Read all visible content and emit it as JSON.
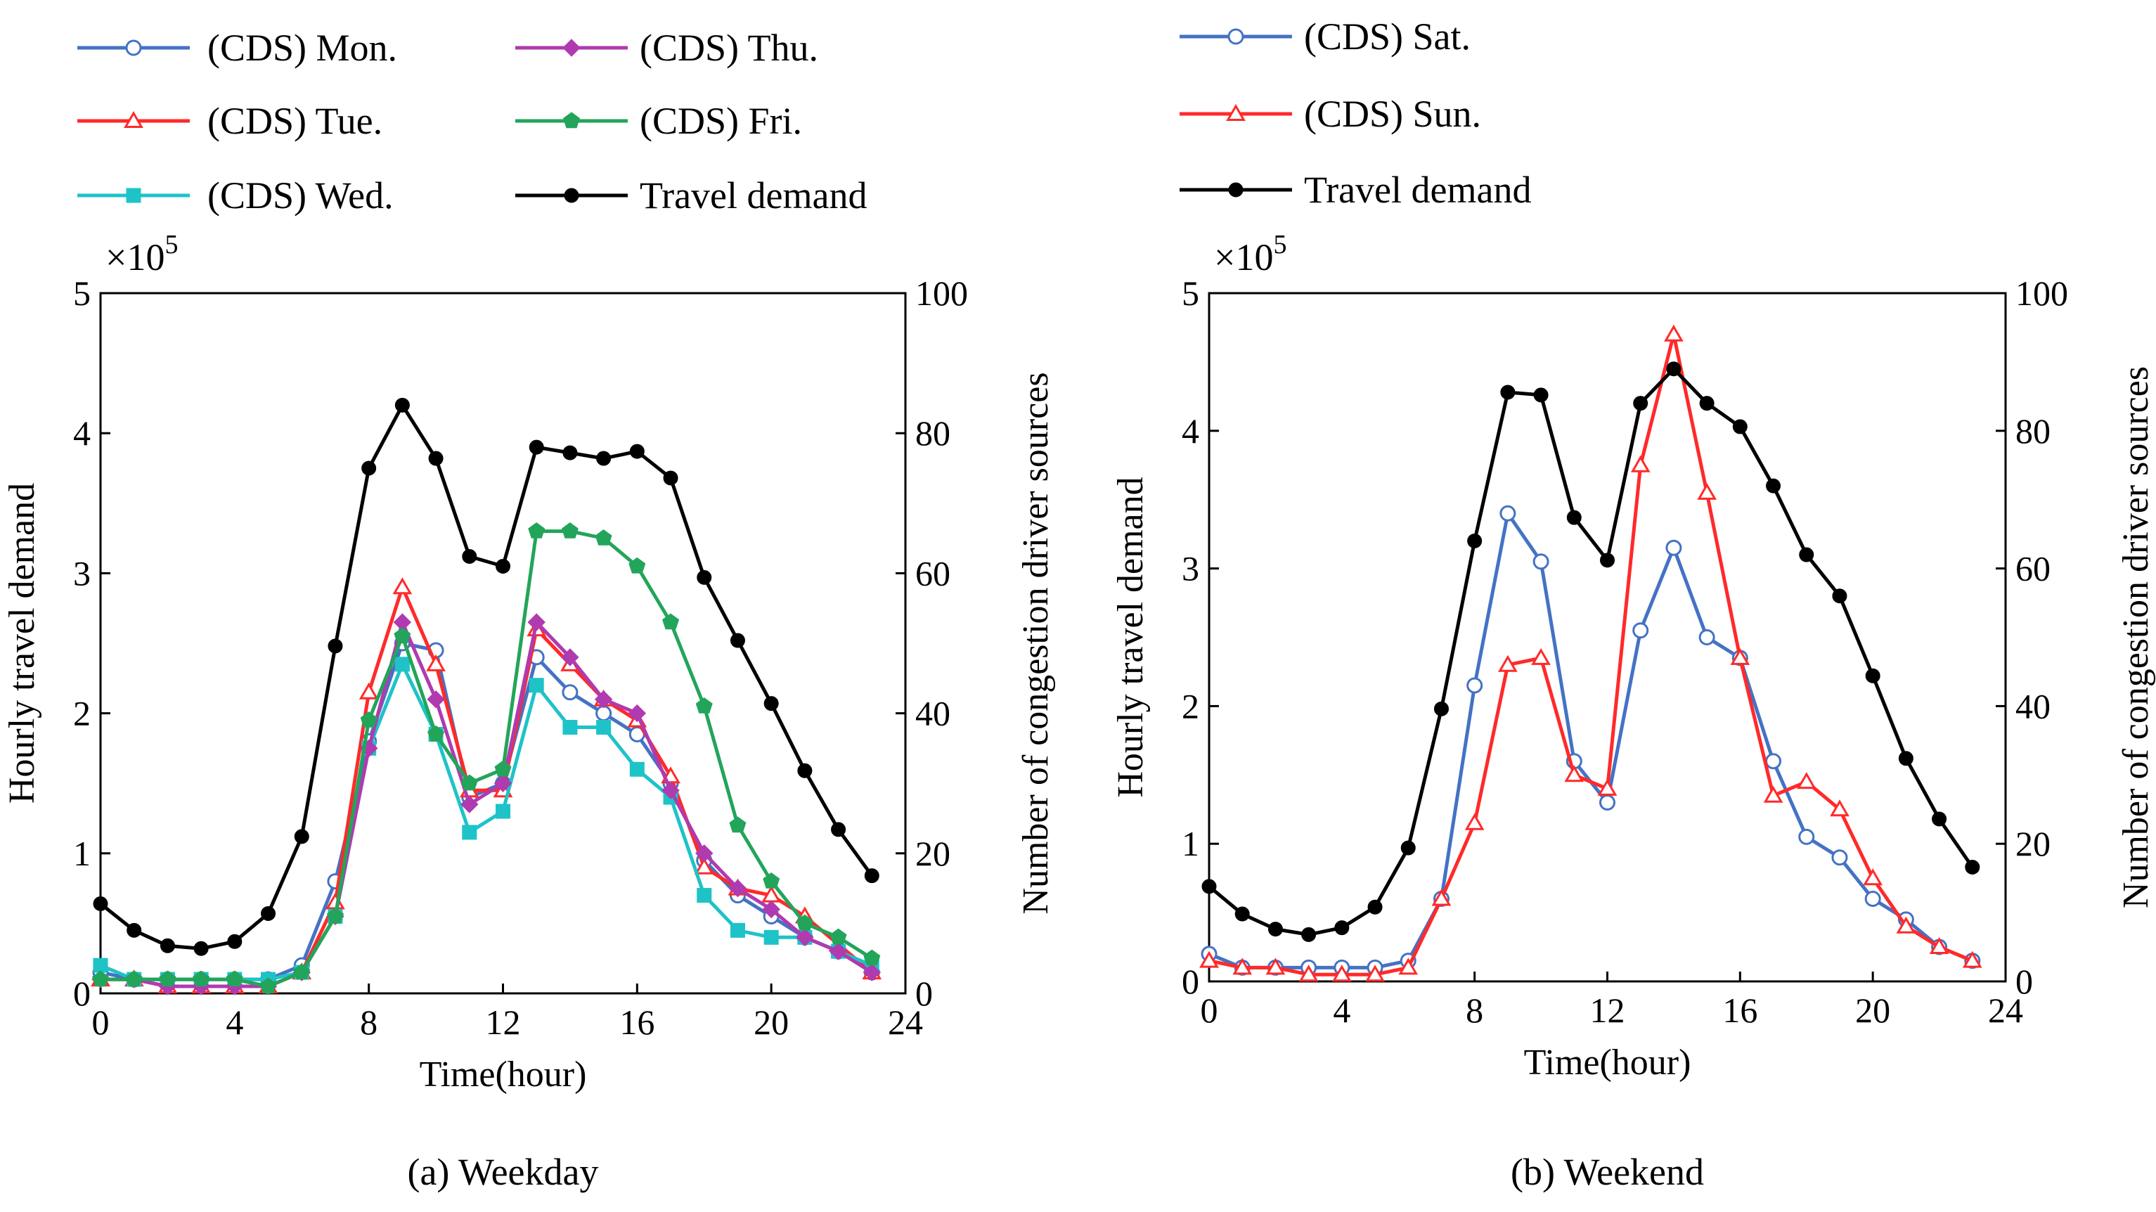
{
  "chart_data": [
    {
      "type": "line",
      "caption": "(a) Weekday",
      "xlabel": "Time(hour)",
      "ylabel": "Hourly travel demand",
      "y2label": "Number of congestion driver sources",
      "multiplier": "×10",
      "multiplier_exp": "5",
      "xlim": [
        0,
        24
      ],
      "ylim": [
        0,
        5
      ],
      "y2lim": [
        0,
        100
      ],
      "xticks": [
        "0",
        "4",
        "8",
        "12",
        "16",
        "20",
        "24"
      ],
      "yticks": [
        "0",
        "1",
        "2",
        "3",
        "4",
        "5"
      ],
      "y2ticks": [
        "0",
        "20",
        "40",
        "60",
        "80",
        "100"
      ],
      "legend_position": "top",
      "series": [
        {
          "name": "(CDS) Mon.",
          "axis": "right",
          "color": "#4472c4",
          "marker": "circle-open",
          "x": [
            0,
            1,
            2,
            3,
            4,
            5,
            6,
            7,
            8,
            9,
            10,
            11,
            12,
            13,
            14,
            15,
            16,
            17,
            18,
            19,
            20,
            21,
            22,
            23
          ],
          "values": [
            3,
            2,
            2,
            2,
            2,
            2,
            4,
            16,
            36,
            50,
            49,
            28,
            30,
            48,
            43,
            40,
            37,
            30,
            19,
            14,
            11,
            8,
            6,
            3
          ]
        },
        {
          "name": "(CDS) Tue.",
          "axis": "right",
          "color": "#ff2a2a",
          "marker": "triangle-open",
          "x": [
            0,
            1,
            2,
            3,
            4,
            5,
            6,
            7,
            8,
            9,
            10,
            11,
            12,
            13,
            14,
            15,
            16,
            17,
            18,
            19,
            20,
            21,
            22,
            23
          ],
          "values": [
            2,
            2,
            1,
            1,
            1,
            1,
            3,
            13,
            43,
            58,
            47,
            29,
            29,
            52,
            47,
            42,
            39,
            31,
            18,
            15,
            14,
            11,
            7,
            3
          ]
        },
        {
          "name": "(CDS) Wed.",
          "axis": "right",
          "color": "#1ec3c8",
          "marker": "square-filled",
          "x": [
            0,
            1,
            2,
            3,
            4,
            5,
            6,
            7,
            8,
            9,
            10,
            11,
            12,
            13,
            14,
            15,
            16,
            17,
            18,
            19,
            20,
            21,
            22,
            23
          ],
          "values": [
            4,
            2,
            2,
            2,
            2,
            2,
            3,
            11,
            35,
            47,
            37,
            23,
            26,
            44,
            38,
            38,
            32,
            28,
            14,
            9,
            8,
            8,
            6,
            4
          ]
        },
        {
          "name": "(CDS) Thu.",
          "axis": "right",
          "color": "#b03ab0",
          "marker": "diamond-filled",
          "x": [
            0,
            1,
            2,
            3,
            4,
            5,
            6,
            7,
            8,
            9,
            10,
            11,
            12,
            13,
            14,
            15,
            16,
            17,
            18,
            19,
            20,
            21,
            22,
            23
          ],
          "values": [
            2,
            2,
            1,
            1,
            1,
            1,
            3,
            11,
            35,
            53,
            42,
            27,
            30,
            53,
            48,
            42,
            40,
            29,
            20,
            15,
            12,
            8,
            6,
            3
          ]
        },
        {
          "name": "(CDS) Fri.",
          "axis": "right",
          "color": "#22a55a",
          "marker": "pentagon-filled",
          "x": [
            0,
            1,
            2,
            3,
            4,
            5,
            6,
            7,
            8,
            9,
            10,
            11,
            12,
            13,
            14,
            15,
            16,
            17,
            18,
            19,
            20,
            21,
            22,
            23
          ],
          "values": [
            2,
            2,
            2,
            2,
            2,
            1,
            3,
            11,
            39,
            51,
            37,
            30,
            32,
            66,
            66,
            65,
            61,
            53,
            41,
            24,
            16,
            10,
            8,
            5
          ]
        },
        {
          "name": "Travel demand",
          "axis": "left",
          "color": "#000000",
          "marker": "circle-filled",
          "x": [
            0,
            1,
            2,
            3,
            4,
            5,
            6,
            7,
            8,
            9,
            10,
            11,
            12,
            13,
            14,
            15,
            16,
            17,
            18,
            19,
            20,
            21,
            22,
            23
          ],
          "values": [
            0.64,
            0.45,
            0.34,
            0.32,
            0.37,
            0.57,
            1.12,
            2.48,
            3.75,
            4.2,
            3.82,
            3.12,
            3.05,
            3.9,
            3.86,
            3.82,
            3.87,
            3.68,
            2.97,
            2.52,
            2.07,
            1.59,
            1.17,
            0.84
          ]
        }
      ]
    },
    {
      "type": "line",
      "caption": "(b) Weekend",
      "xlabel": "Time(hour)",
      "ylabel": "Hourly travel demand",
      "y2label": "Number of congestion driver sources",
      "multiplier": "×10",
      "multiplier_exp": "5",
      "xlim": [
        0,
        24
      ],
      "ylim": [
        0,
        5
      ],
      "y2lim": [
        0,
        100
      ],
      "xticks": [
        "0",
        "4",
        "8",
        "12",
        "16",
        "20",
        "24"
      ],
      "yticks": [
        "0",
        "1",
        "2",
        "3",
        "4",
        "5"
      ],
      "y2ticks": [
        "0",
        "20",
        "40",
        "60",
        "80",
        "100"
      ],
      "legend_position": "top",
      "series": [
        {
          "name": "(CDS) Sat.",
          "axis": "right",
          "color": "#4472c4",
          "marker": "circle-open",
          "x": [
            0,
            1,
            2,
            3,
            4,
            5,
            6,
            7,
            8,
            9,
            10,
            11,
            12,
            13,
            14,
            15,
            16,
            17,
            18,
            19,
            20,
            21,
            22,
            23
          ],
          "values": [
            4,
            2,
            2,
            2,
            2,
            2,
            3,
            12,
            43,
            68,
            61,
            32,
            26,
            51,
            63,
            50,
            47,
            32,
            21,
            18,
            12,
            9,
            5,
            3
          ]
        },
        {
          "name": "(CDS) Sun.",
          "axis": "right",
          "color": "#ff2a2a",
          "marker": "triangle-open",
          "x": [
            0,
            1,
            2,
            3,
            4,
            5,
            6,
            7,
            8,
            9,
            10,
            11,
            12,
            13,
            14,
            15,
            16,
            17,
            18,
            19,
            20,
            21,
            22,
            23
          ],
          "values": [
            3,
            2,
            2,
            1,
            1,
            1,
            2,
            12,
            23,
            46,
            47,
            30,
            28,
            75,
            94,
            71,
            47,
            27,
            29,
            25,
            15,
            8,
            5,
            3
          ]
        },
        {
          "name": "Travel demand",
          "axis": "left",
          "color": "#000000",
          "marker": "circle-filled",
          "x": [
            0,
            1,
            2,
            3,
            4,
            5,
            6,
            7,
            8,
            9,
            10,
            11,
            12,
            13,
            14,
            15,
            16,
            17,
            18,
            19,
            20,
            21,
            22,
            23
          ],
          "values": [
            0.69,
            0.49,
            0.38,
            0.34,
            0.39,
            0.54,
            0.97,
            1.98,
            3.2,
            4.28,
            4.26,
            3.37,
            3.06,
            4.2,
            4.45,
            4.2,
            4.03,
            3.6,
            3.1,
            2.8,
            2.22,
            1.62,
            1.18,
            0.83
          ]
        }
      ]
    }
  ]
}
